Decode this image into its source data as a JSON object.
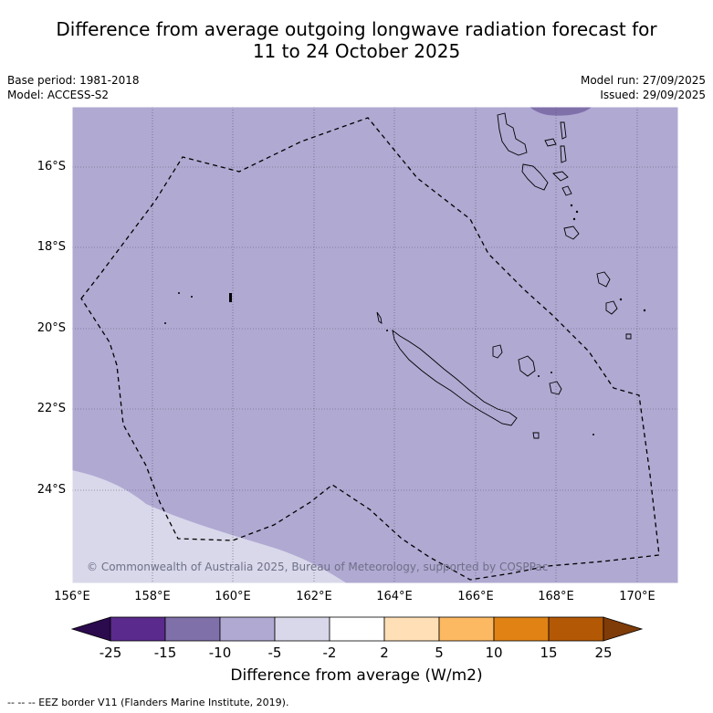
{
  "title_line1": "Difference from average outgoing longwave radiation forecast for",
  "title_line2": "11 to 24 October 2025",
  "base_period": "Base period: 1981-2018",
  "model": "Model: ACCESS-S2",
  "model_run": "Model run: 27/09/2025",
  "issued": "Issued: 29/09/2025",
  "credit": "© Commonwealth of Australia 2025, Bureau of Meteorology, supported by COSPPac",
  "lat_labels": [
    "16°S",
    "18°S",
    "20°S",
    "22°S",
    "24°S"
  ],
  "lon_labels": [
    "156°E",
    "158°E",
    "160°E",
    "162°E",
    "164°E",
    "166°E",
    "168°E",
    "170°E"
  ],
  "colorbar": {
    "ticks": [
      "-25",
      "-15",
      "-10",
      "-5",
      "-2",
      "2",
      "5",
      "10",
      "15",
      "25"
    ],
    "colors": [
      "#2b0a4d",
      "#5a2a8c",
      "#8070aa",
      "#b0a9d2",
      "#d8d8ea",
      "#ffffff",
      "#ffe0b6",
      "#fdb862",
      "#e08314",
      "#b35805",
      "#7f3b08"
    ],
    "label": "Difference from average (W/m2)"
  },
  "footnote": "--  --  -- EEZ border V11 (Flanders Marine Institute, 2019).",
  "map_colors": {
    "main": "#b0a9d2",
    "low": "#d8d8ea",
    "high": "#8070aa"
  },
  "chart_data": {
    "type": "heatmap",
    "variable": "OLR anomaly (W/m2)",
    "lon_range": [
      156,
      171
    ],
    "lat_range": [
      -26.5,
      -14.8
    ],
    "dominant_bin": [
      -10,
      -5
    ],
    "south_west_bin": [
      -5,
      -2
    ],
    "north_east_bin": [
      -15,
      -10
    ]
  }
}
